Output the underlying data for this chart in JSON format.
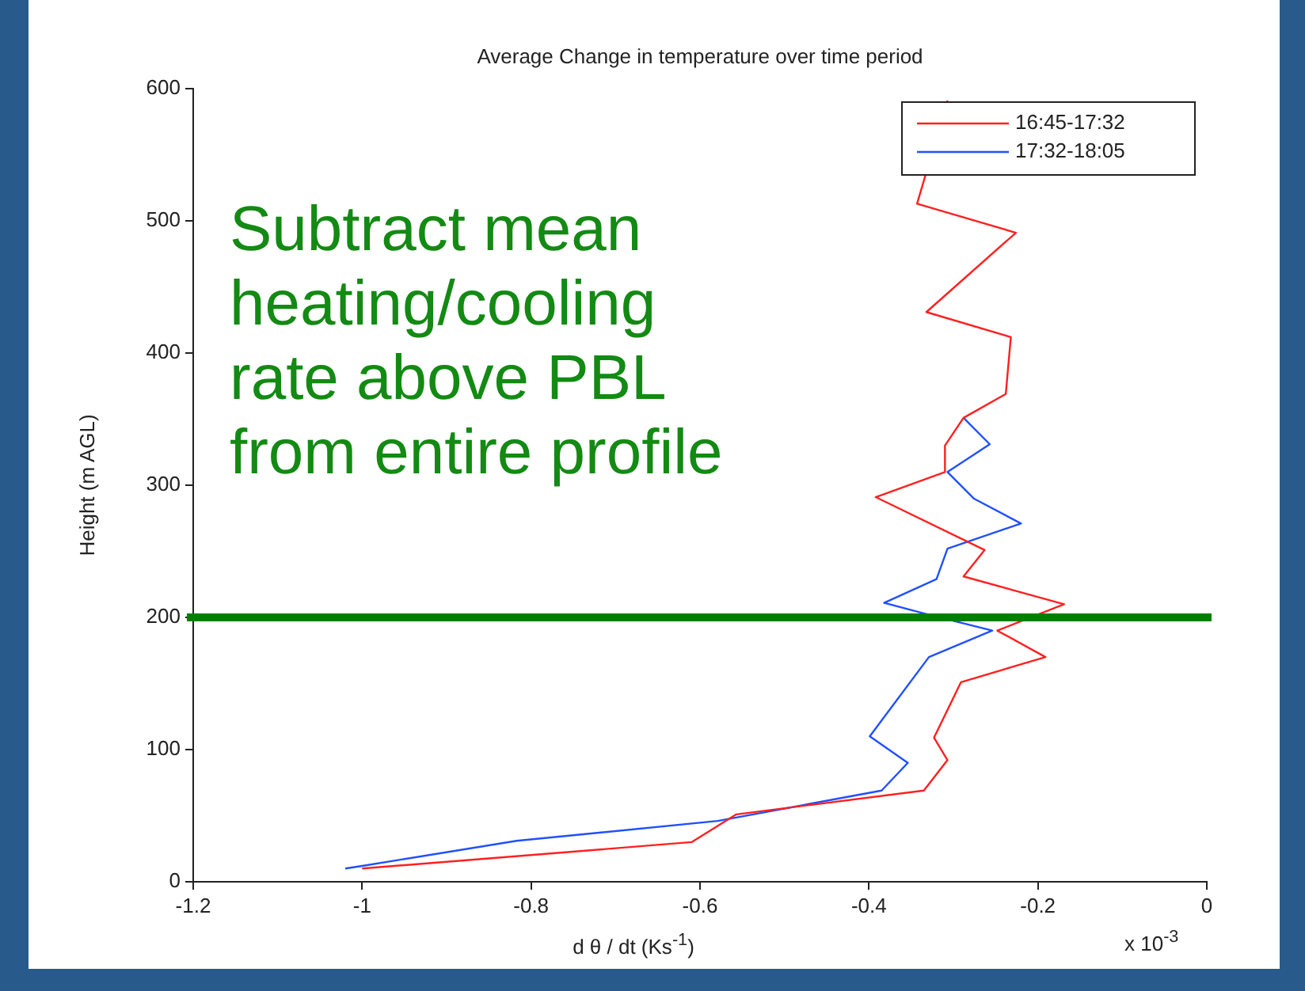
{
  "chart_data": {
    "type": "line",
    "title": "Average Change in temperature over time period",
    "xlabel": "d θ / dt (Ks$^{-1}$)",
    "ylabel": "Height (m AGL)",
    "xlim": [
      -1.2,
      0
    ],
    "xticks": [
      -1.2,
      -1,
      -0.8,
      -0.6,
      -0.4,
      -0.2,
      0
    ],
    "ylim": [
      0,
      600
    ],
    "yticks": [
      0,
      100,
      200,
      300,
      400,
      500,
      600
    ],
    "series": [
      {
        "name": "16:45-17:32",
        "color": "#ff2020",
        "x": [
          -1.0,
          -0.61,
          -0.557,
          -0.335,
          -0.307,
          -0.323,
          -0.291,
          -0.191,
          -0.248,
          -0.169,
          -0.288,
          -0.263,
          -0.392,
          -0.31,
          -0.31,
          -0.288,
          -0.238,
          -0.232,
          -0.332,
          -0.226,
          -0.343,
          -0.307
        ],
        "values": [
          10,
          30,
          51,
          69,
          92,
          109,
          151,
          170,
          190,
          210,
          231,
          251,
          291,
          310,
          330,
          351,
          369,
          412,
          431,
          491,
          513,
          591
        ]
      },
      {
        "name": "17:32-18:05",
        "color": "#2050ff",
        "x": [
          -1.02,
          -1.0,
          -0.817,
          -0.579,
          -0.385,
          -0.354,
          -0.399,
          -0.329,
          -0.254,
          -0.329,
          -0.382,
          -0.32,
          -0.307,
          -0.22,
          -0.276,
          -0.307,
          -0.257,
          -0.288
        ],
        "values": [
          10,
          12,
          31,
          46,
          69,
          90,
          110,
          170,
          190,
          202,
          211,
          229,
          252,
          271,
          290,
          310,
          331,
          351
        ]
      }
    ],
    "ref_lines": [
      {
        "axis": "y",
        "value": 200,
        "color": "#008000"
      }
    ],
    "legend": "top right",
    "grid": false,
    "annotations": [
      "Subtract mean\nheating/cooling\nrate above PBL\nfrom entire profile",
      "x 10$^{-3}$"
    ]
  }
}
